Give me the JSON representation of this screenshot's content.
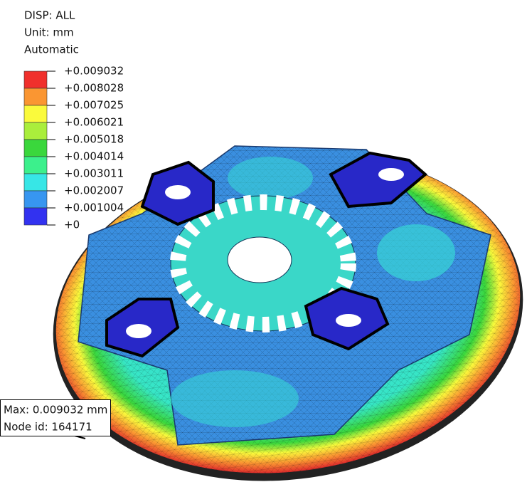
{
  "header": {
    "lines": [
      "DISP: ALL",
      "Unit: mm",
      "Automatic"
    ]
  },
  "legend": {
    "labels": [
      "+0.009032",
      "+0.008028",
      "+0.007025",
      "+0.006021",
      "+0.005018",
      "+0.004014",
      "+0.003011",
      "+0.002007",
      "+0.001004",
      "+0"
    ],
    "colors": [
      "#f0302c",
      "#fa9632",
      "#fafa3c",
      "#aaee3c",
      "#3ad73c",
      "#3cf08c",
      "#37e6e6",
      "#3796f0",
      "#3232f0"
    ]
  },
  "annotation": {
    "lines": [
      "Max: 0.009032 mm",
      "Node id: 164171"
    ]
  }
}
